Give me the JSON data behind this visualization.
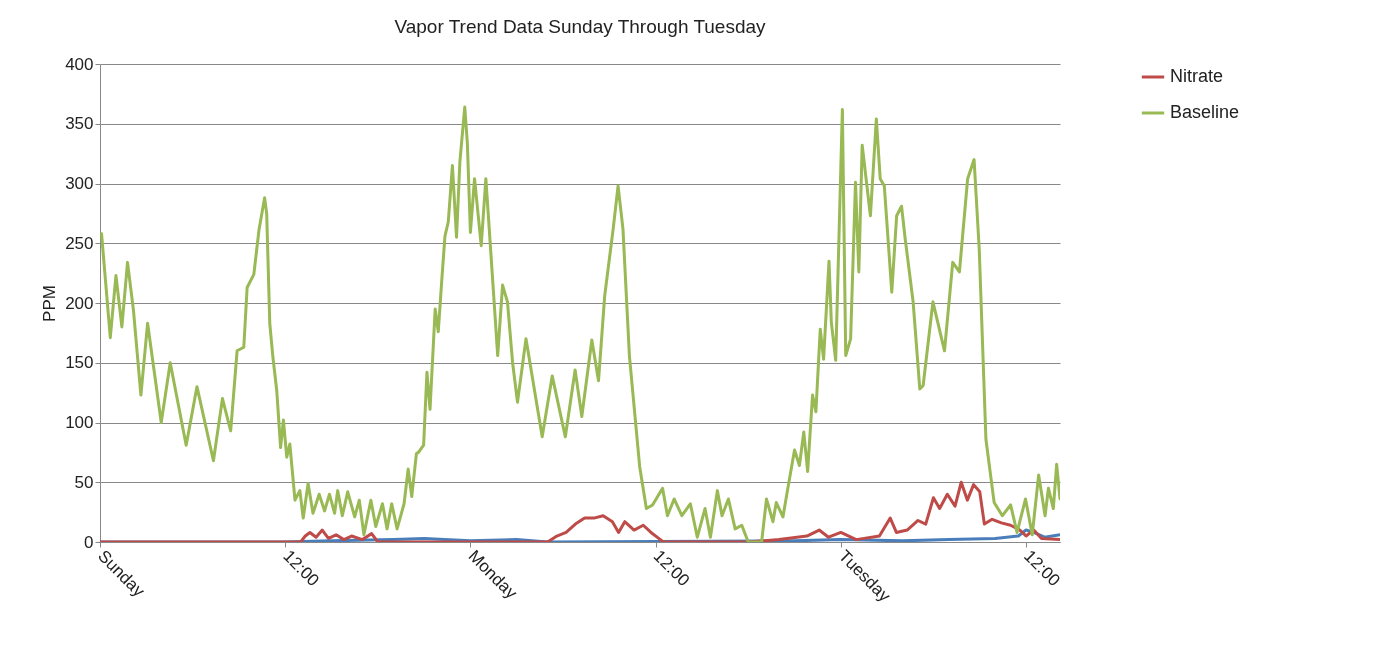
{
  "chart_data": {
    "type": "line",
    "title": "Vapor Trend Data Sunday Through Tuesday",
    "ylabel": "PPM",
    "xlim": [
      "--01-01T00:00",
      "--01-03T14:12"
    ],
    "xticks": [
      {
        "value": "--01-01T00:00",
        "label": "Sunday"
      },
      {
        "value": "--01-01T12:00",
        "label": "12:00"
      },
      {
        "value": "--01-02T00:00",
        "label": "Monday"
      },
      {
        "value": "--01-02T12:00",
        "label": "12:00"
      },
      {
        "value": "--01-03T00:00",
        "label": "Tuesday"
      },
      {
        "value": "--01-03T12:00",
        "label": "12:00"
      }
    ],
    "ylim": [
      0,
      400
    ],
    "yticks": [
      0,
      50,
      100,
      150,
      200,
      250,
      300,
      350,
      400
    ],
    "grid": "y",
    "legend": "right",
    "line_style": "solid",
    "series": [
      {
        "color": "#4a7ebb",
        "x": [
          "--01-01T00:00",
          "--01-01T12:00",
          "--01-01T15:00",
          "--01-01T19:00",
          "--01-01T21:00",
          "--01-02T00:00",
          "--01-02T03:00",
          "--01-02T05:00",
          "--01-02T21:00",
          "--01-03T00:00",
          "--01-03T04:00",
          "--01-03T07:00",
          "--01-03T10:00",
          "--01-03T11:30",
          "--01-03T12:00",
          "--01-03T12:30",
          "--01-03T13:12",
          "--01-03T14:12"
        ],
        "values": [
          0,
          0,
          1,
          2,
          3,
          1,
          2,
          0,
          1,
          2,
          1,
          2,
          3,
          5,
          10,
          8,
          4,
          6
        ]
      },
      {
        "name": "Nitrate",
        "color": "#be4b48",
        "x": [
          "--01-01T00:00",
          "--01-01T13:00",
          "--01-01T13:18",
          "--01-01T13:36",
          "--01-01T14:00",
          "--01-01T14:24",
          "--01-01T14:48",
          "--01-01T15:18",
          "--01-01T15:48",
          "--01-01T16:18",
          "--01-01T17:00",
          "--01-01T17:36",
          "--01-01T18:00",
          "--01-02T05:00",
          "--01-02T05:36",
          "--01-02T06:12",
          "--01-02T06:48",
          "--01-02T07:24",
          "--01-02T08:00",
          "--01-02T08:36",
          "--01-02T09:12",
          "--01-02T09:36",
          "--01-02T10:00",
          "--01-02T10:36",
          "--01-02T11:12",
          "--01-02T11:42",
          "--01-02T12:12",
          "--01-02T12:30",
          "--01-02T18:00",
          "--01-02T20:00",
          "--01-02T21:48",
          "--01-02T22:36",
          "--01-02T23:12",
          "--01-03T00:00",
          "--01-03T01:00",
          "--01-03T02:30",
          "--01-03T03:12",
          "--01-03T03:36",
          "--01-03T04:18",
          "--01-03T05:00",
          "--01-03T05:30",
          "--01-03T06:00",
          "--01-03T06:24",
          "--01-03T06:54",
          "--01-03T07:24",
          "--01-03T07:48",
          "--01-03T08:12",
          "--01-03T08:36",
          "--01-03T09:00",
          "--01-03T09:18",
          "--01-03T09:48",
          "--01-03T10:24",
          "--01-03T11:00",
          "--01-03T11:36",
          "--01-03T12:00",
          "--01-03T12:30",
          "--01-03T13:00",
          "--01-03T14:12"
        ],
        "values": [
          0,
          0,
          5,
          8,
          4,
          10,
          3,
          6,
          2,
          5,
          2,
          7,
          0,
          0,
          5,
          8,
          15,
          20,
          20,
          22,
          17,
          8,
          17,
          10,
          14,
          8,
          3,
          0,
          0,
          2,
          5,
          10,
          4,
          8,
          2,
          5,
          20,
          8,
          10,
          18,
          15,
          37,
          28,
          40,
          30,
          50,
          35,
          48,
          42,
          15,
          19,
          16,
          14,
          10,
          5,
          10,
          3,
          2
        ]
      },
      {
        "name": "Baseline",
        "color": "#98b954",
        "x": [
          "--01-01T00:06",
          "--01-01T00:40",
          "--01-01T01:02",
          "--01-01T01:25",
          "--01-01T01:47",
          "--01-01T02:10",
          "--01-01T02:39",
          "--01-01T03:05",
          "--01-01T03:58",
          "--01-01T04:33",
          "--01-01T05:35",
          "--01-01T06:17",
          "--01-01T07:21",
          "--01-01T07:56",
          "--01-01T08:28",
          "--01-01T08:53",
          "--01-01T09:19",
          "--01-01T09:32",
          "--01-01T09:58",
          "--01-01T10:18",
          "--01-01T10:40",
          "--01-01T10:48",
          "--01-01T11:00",
          "--01-01T11:12",
          "--01-01T11:27",
          "--01-01T11:42",
          "--01-01T11:53",
          "--01-01T12:06",
          "--01-01T12:18",
          "--01-01T12:38",
          "--01-01T12:57",
          "--01-01T13:10",
          "--01-01T13:29",
          "--01-01T13:48",
          "--01-01T14:12",
          "--01-01T14:33",
          "--01-01T14:52",
          "--01-01T15:12",
          "--01-01T15:24",
          "--01-01T15:42",
          "--01-01T16:03",
          "--01-01T16:30",
          "--01-01T16:48",
          "--01-01T17:06",
          "--01-01T17:33",
          "--01-01T17:52",
          "--01-01T18:18",
          "--01-01T18:36",
          "--01-01T18:54",
          "--01-01T19:15",
          "--01-01T19:42",
          "--01-01T19:58",
          "--01-01T20:12",
          "--01-01T20:30",
          "--01-01T20:38",
          "--01-01T20:58",
          "--01-01T21:11",
          "--01-01T21:23",
          "--01-01T21:43",
          "--01-01T21:55",
          "--01-01T22:08",
          "--01-01T22:21",
          "--01-01T22:34",
          "--01-01T22:50",
          "--01-01T23:06",
          "--01-01T23:19",
          "--01-01T23:38",
          "--01-01T23:48",
          "--01-02T00:00",
          "--01-02T00:16",
          "--01-02T00:42",
          "--01-02T01:00",
          "--01-02T01:20",
          "--01-02T01:46",
          "--01-02T02:05",
          "--01-02T02:24",
          "--01-02T02:44",
          "--01-02T03:03",
          "--01-02T03:36",
          "--01-02T04:39",
          "--01-02T05:18",
          "--01-02T06:09",
          "--01-02T06:47",
          "--01-02T07:13",
          "--01-02T07:52",
          "--01-02T08:18",
          "--01-02T08:42",
          "--01-02T09:15",
          "--01-02T09:34",
          "--01-02T09:53",
          "--01-02T10:18",
          "--01-02T10:58",
          "--01-02T11:24",
          "--01-02T11:48",
          "--01-02T12:27",
          "--01-02T12:46",
          "--01-02T13:12",
          "--01-02T13:42",
          "--01-02T14:15",
          "--01-02T14:42",
          "--01-02T15:12",
          "--01-02T15:33",
          "--01-02T16:00",
          "--01-02T16:18",
          "--01-02T16:43",
          "--01-02T17:09",
          "--01-02T17:35",
          "--01-02T18:00",
          "--01-02T18:52",
          "--01-02T19:11",
          "--01-02T19:36",
          "--01-02T19:49",
          "--01-02T20:15",
          "--01-02T20:34",
          "--01-02T21:00",
          "--01-02T21:19",
          "--01-02T21:36",
          "--01-02T21:51",
          "--01-02T22:10",
          "--01-02T22:23",
          "--01-02T22:40",
          "--01-02T22:53",
          "--01-02T23:14",
          "--01-02T23:23",
          "--01-02T23:40",
          "--01-03T00:06",
          "--01-03T00:19",
          "--01-03T00:38",
          "--01-03T00:57",
          "--01-03T01:10",
          "--01-03T01:23",
          "--01-03T01:55",
          "--01-03T02:18",
          "--01-03T02:33",
          "--01-03T02:49",
          "--01-03T03:18",
          "--01-03T03:37",
          "--01-03T03:56",
          "--01-03T04:10",
          "--01-03T04:41",
          "--01-03T05:07",
          "--01-03T05:20",
          "--01-03T05:58",
          "--01-03T06:43",
          "--01-03T07:15",
          "--01-03T07:41",
          "--01-03T08:13",
          "--01-03T08:38",
          "--01-03T08:58",
          "--01-03T09:24",
          "--01-03T09:56",
          "--01-03T10:28",
          "--01-03T11:00",
          "--01-03T11:25",
          "--01-03T11:58",
          "--01-03T12:24",
          "--01-03T12:49",
          "--01-03T13:14",
          "--01-03T13:27",
          "--01-03T13:46",
          "--01-03T13:59",
          "--01-03T14:12"
        ],
        "values": [
          258,
          171,
          223,
          180,
          234,
          194,
          123,
          183,
          100,
          150,
          81,
          130,
          68,
          120,
          93,
          160,
          163,
          213,
          224,
          261,
          288,
          275,
          183,
          155,
          127,
          79,
          102,
          71,
          82,
          35,
          43,
          20,
          49,
          24,
          40,
          26,
          40,
          24,
          43,
          22,
          42,
          21,
          35,
          6,
          35,
          13,
          32,
          11,
          32,
          11,
          32,
          61,
          38,
          74,
          75,
          81,
          142,
          111,
          195,
          176,
          217,
          256,
          268,
          315,
          255,
          318,
          364,
          334,
          259,
          304,
          248,
          304,
          240,
          156,
          215,
          201,
          150,
          117,
          170,
          88,
          139,
          88,
          144,
          105,
          169,
          135,
          206,
          262,
          298,
          262,
          156,
          63,
          28,
          31,
          45,
          22,
          36,
          22,
          32,
          4,
          28,
          4,
          43,
          22,
          36,
          11,
          14,
          0,
          0,
          36,
          17,
          33,
          21,
          45,
          77,
          64,
          92,
          59,
          123,
          109,
          178,
          153,
          235,
          184,
          152,
          362,
          156,
          170,
          301,
          226,
          332,
          273,
          354,
          304,
          298,
          209,
          273,
          281,
          254,
          201,
          128,
          131,
          201,
          160,
          234,
          226,
          304,
          320,
          245,
          86,
          33,
          22,
          31,
          8,
          36,
          6,
          56,
          22,
          45,
          28,
          65,
          36
        ]
      }
    ]
  }
}
